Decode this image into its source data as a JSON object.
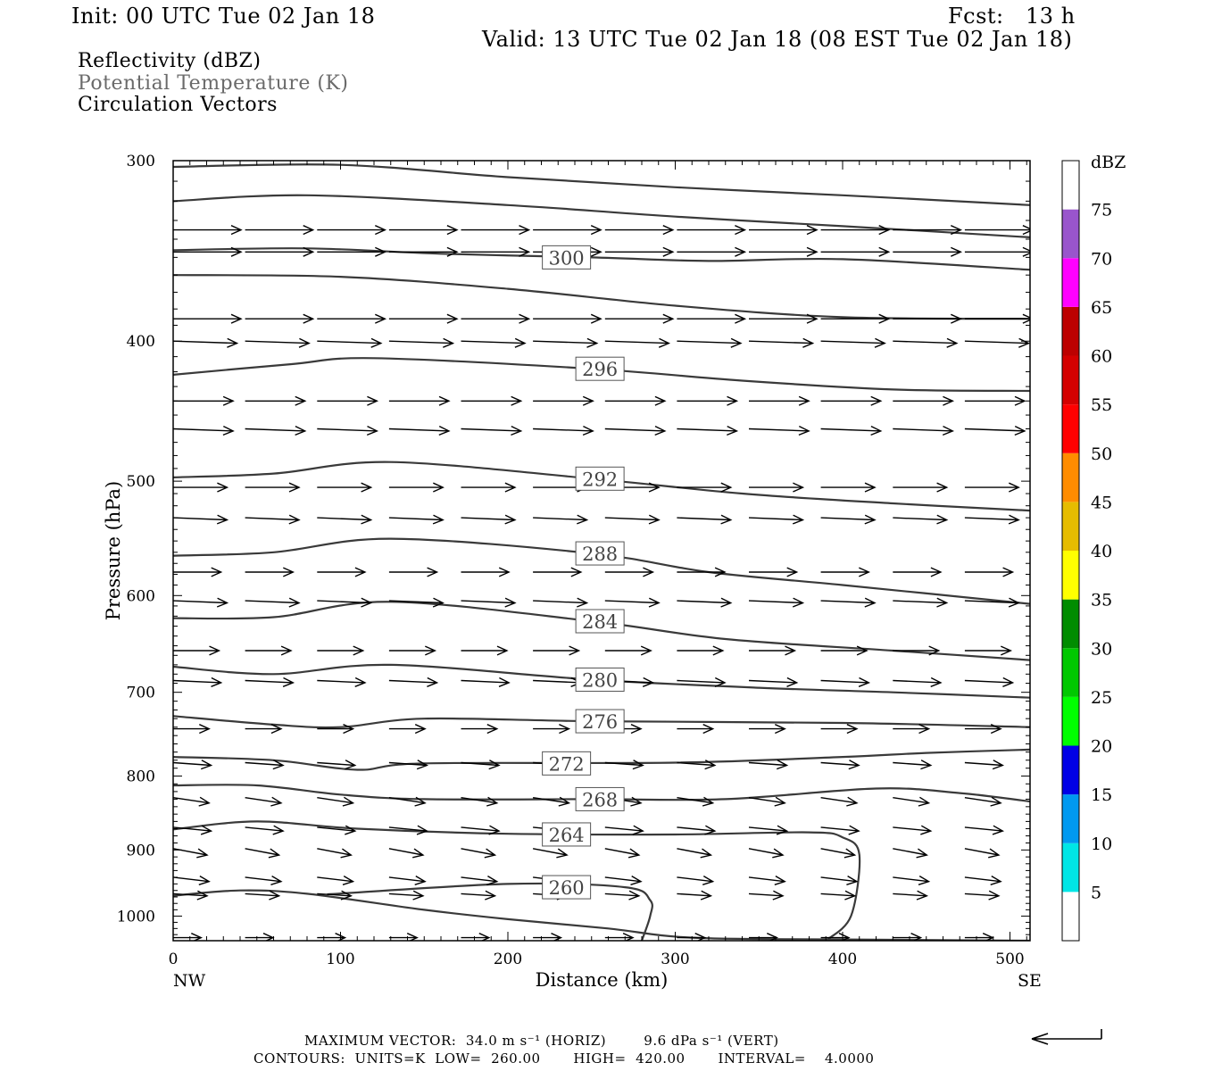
{
  "header": {
    "init": "Init: 00 UTC Tue 02 Jan 18",
    "fcst": "Fcst:   13 h",
    "valid": "Valid: 13 UTC Tue 02 Jan 18 (08 EST Tue 02 Jan 18)"
  },
  "fields": {
    "reflectivity": "Reflectivity (dBZ)",
    "theta": "Potential Temperature (K)",
    "vectors": "Circulation Vectors"
  },
  "footer": {
    "max_vector_line": "MAXIMUM VECTOR:  34.0 m s⁻¹ (HORIZ)        9.6 dPa s⁻¹ (VERT)",
    "contours_line": "CONTOURS:  UNITS=K  LOW=  260.00       HIGH=  420.00       INTERVAL=    4.0000"
  },
  "colors": {
    "contour": "#3a3a3a",
    "vector": "#000000",
    "axis": "#000000"
  },
  "chart_data": {
    "type": "cross-section",
    "xlabel": "Distance (km)",
    "ylabel": "Pressure (hPa)",
    "xlim": [
      0,
      512
    ],
    "ylim": [
      1040,
      300
    ],
    "y_scale": "log-pressure",
    "x_ticks": [
      0,
      100,
      200,
      300,
      400,
      500
    ],
    "y_ticks": [
      300,
      400,
      500,
      600,
      700,
      800,
      900,
      1000
    ],
    "x_endpoint_labels": {
      "left": "NW",
      "right": "SE"
    },
    "colorbar": {
      "title": "dBZ",
      "labels": [
        "5",
        "10",
        "15",
        "20",
        "25",
        "30",
        "35",
        "40",
        "45",
        "50",
        "55",
        "60",
        "65",
        "70",
        "75"
      ],
      "bins": [
        {
          "from": 0,
          "to": 5,
          "color": "#ffffff"
        },
        {
          "from": 5,
          "to": 10,
          "color": "#00e6e6"
        },
        {
          "from": 10,
          "to": 15,
          "color": "#0099f0"
        },
        {
          "from": 15,
          "to": 20,
          "color": "#0000e6"
        },
        {
          "from": 20,
          "to": 25,
          "color": "#00ff00"
        },
        {
          "from": 25,
          "to": 30,
          "color": "#00c800"
        },
        {
          "from": 30,
          "to": 35,
          "color": "#008c00"
        },
        {
          "from": 35,
          "to": 40,
          "color": "#ffff00"
        },
        {
          "from": 40,
          "to": 45,
          "color": "#e6bc00"
        },
        {
          "from": 45,
          "to": 50,
          "color": "#ff8c00"
        },
        {
          "from": 50,
          "to": 55,
          "color": "#ff0000"
        },
        {
          "from": 55,
          "to": 60,
          "color": "#d40000"
        },
        {
          "from": 60,
          "to": 65,
          "color": "#bc0000"
        },
        {
          "from": 65,
          "to": 70,
          "color": "#ff00ff"
        },
        {
          "from": 70,
          "to": 75,
          "color": "#9955cc"
        },
        {
          "from": 75,
          "to": 80,
          "color": "#ffffff"
        }
      ]
    },
    "isentropes": [
      {
        "label": "300",
        "label_at": [
          235,
          350
        ],
        "points": [
          [
            0,
            346
          ],
          [
            80,
            345
          ],
          [
            160,
            348
          ],
          [
            250,
            350
          ],
          [
            320,
            352
          ],
          [
            400,
            351
          ],
          [
            512,
            357
          ]
        ]
      },
      {
        "label": "296",
        "label_at": [
          255,
          418
        ],
        "points": [
          [
            0,
            422
          ],
          [
            70,
            415
          ],
          [
            120,
            411
          ],
          [
            250,
            418
          ],
          [
            340,
            426
          ],
          [
            430,
            432
          ],
          [
            512,
            433
          ]
        ]
      },
      {
        "label": "292",
        "label_at": [
          255,
          498
        ],
        "points": [
          [
            0,
            497
          ],
          [
            60,
            494
          ],
          [
            130,
            485
          ],
          [
            250,
            498
          ],
          [
            340,
            510
          ],
          [
            430,
            518
          ],
          [
            512,
            524
          ]
        ]
      },
      {
        "label": "288",
        "label_at": [
          255,
          561
        ],
        "points": [
          [
            0,
            563
          ],
          [
            60,
            560
          ],
          [
            130,
            548
          ],
          [
            250,
            561
          ],
          [
            320,
            578
          ],
          [
            400,
            590
          ],
          [
            512,
            608
          ]
        ]
      },
      {
        "label": "284",
        "label_at": [
          255,
          625
        ],
        "points": [
          [
            0,
            622
          ],
          [
            60,
            621
          ],
          [
            130,
            606
          ],
          [
            250,
            625
          ],
          [
            330,
            643
          ],
          [
            430,
            655
          ],
          [
            512,
            665
          ]
        ]
      },
      {
        "label": "280",
        "label_at": [
          255,
          686
        ],
        "points": [
          [
            0,
            672
          ],
          [
            60,
            680
          ],
          [
            130,
            670
          ],
          [
            250,
            686
          ],
          [
            350,
            695
          ],
          [
            430,
            700
          ],
          [
            512,
            706
          ]
        ]
      },
      {
        "label": "276",
        "label_at": [
          255,
          733
        ],
        "points": [
          [
            0,
            727
          ],
          [
            60,
            737
          ],
          [
            100,
            740
          ],
          [
            150,
            730
          ],
          [
            250,
            733
          ],
          [
            400,
            735
          ],
          [
            512,
            740
          ]
        ]
      },
      {
        "label": "272",
        "label_at": [
          235,
          784
        ],
        "points": [
          [
            0,
            776
          ],
          [
            60,
            780
          ],
          [
            110,
            792
          ],
          [
            150,
            784
          ],
          [
            300,
            783
          ],
          [
            400,
            776
          ],
          [
            450,
            771
          ],
          [
            512,
            767
          ]
        ]
      },
      {
        "label": "268",
        "label_at": [
          255,
          830
        ],
        "points": [
          [
            0,
            812
          ],
          [
            50,
            812
          ],
          [
            100,
            824
          ],
          [
            150,
            830
          ],
          [
            250,
            830
          ],
          [
            330,
            830
          ],
          [
            420,
            816
          ],
          [
            470,
            822
          ],
          [
            512,
            833
          ]
        ]
      },
      {
        "label": "264",
        "label_at": [
          235,
          878
        ],
        "points": [
          [
            0,
            871
          ],
          [
            50,
            860
          ],
          [
            110,
            870
          ],
          [
            200,
            877
          ],
          [
            300,
            878
          ],
          [
            380,
            875
          ],
          [
            400,
            882
          ],
          [
            410,
            907
          ],
          [
            405,
            1000
          ],
          [
            390,
            1040
          ]
        ]
      },
      {
        "label": "260",
        "label_at": [
          235,
          955
        ],
        "points": [
          [
            92,
            966
          ],
          [
            200,
            950
          ],
          [
            270,
            955
          ],
          [
            285,
            975
          ],
          [
            285,
            1000
          ],
          [
            280,
            1040
          ]
        ]
      },
      {
        "label": "",
        "label_at": null,
        "points": [
          [
            0,
            968
          ],
          [
            40,
            960
          ],
          [
            80,
            965
          ],
          [
            150,
            990
          ],
          [
            200,
            1005
          ],
          [
            260,
            1020
          ],
          [
            310,
            1035
          ],
          [
            400,
            1038
          ],
          [
            512,
            1040
          ]
        ]
      },
      {
        "label": "",
        "label_at": null,
        "points": [
          [
            0,
            320
          ],
          [
            80,
            317
          ],
          [
            200,
            322
          ],
          [
            300,
            328
          ],
          [
            400,
            333
          ],
          [
            512,
            339
          ]
        ]
      },
      {
        "label": "",
        "label_at": null,
        "points": [
          [
            0,
            303
          ],
          [
            100,
            302
          ],
          [
            200,
            308
          ],
          [
            300,
            313
          ],
          [
            400,
            317
          ],
          [
            512,
            322
          ]
        ]
      },
      {
        "label": "",
        "label_at": null,
        "points": [
          [
            0,
            360
          ],
          [
            100,
            361
          ],
          [
            200,
            368
          ],
          [
            300,
            378
          ],
          [
            400,
            385
          ],
          [
            512,
            386
          ]
        ]
      }
    ],
    "vector_rows": [
      {
        "p": 335,
        "u": 34,
        "w": 0
      },
      {
        "p": 347,
        "u": 34,
        "w": 0
      },
      {
        "p": 386,
        "u": 34,
        "w": 0
      },
      {
        "p": 400,
        "u": 32,
        "w": 0.4
      },
      {
        "p": 440,
        "u": 30,
        "w": 0
      },
      {
        "p": 460,
        "u": 30,
        "w": 0.4
      },
      {
        "p": 505,
        "u": 27,
        "w": 0
      },
      {
        "p": 530,
        "u": 27,
        "w": 0.4
      },
      {
        "p": 578,
        "u": 24,
        "w": 0
      },
      {
        "p": 605,
        "u": 27,
        "w": 0.4
      },
      {
        "p": 655,
        "u": 23,
        "w": 0
      },
      {
        "p": 687,
        "u": 24,
        "w": 0.4
      },
      {
        "p": 742,
        "u": 18,
        "w": 0
      },
      {
        "p": 783,
        "u": 19,
        "w": 0.5
      },
      {
        "p": 828,
        "u": 18,
        "w": 1.0
      },
      {
        "p": 868,
        "u": 19,
        "w": 0.7
      },
      {
        "p": 898,
        "u": 17,
        "w": 1.2
      },
      {
        "p": 940,
        "u": 18,
        "w": 0.8
      },
      {
        "p": 965,
        "u": 17,
        "w": 0.4
      },
      {
        "p": 1035,
        "u": 14,
        "w": 0
      }
    ]
  }
}
